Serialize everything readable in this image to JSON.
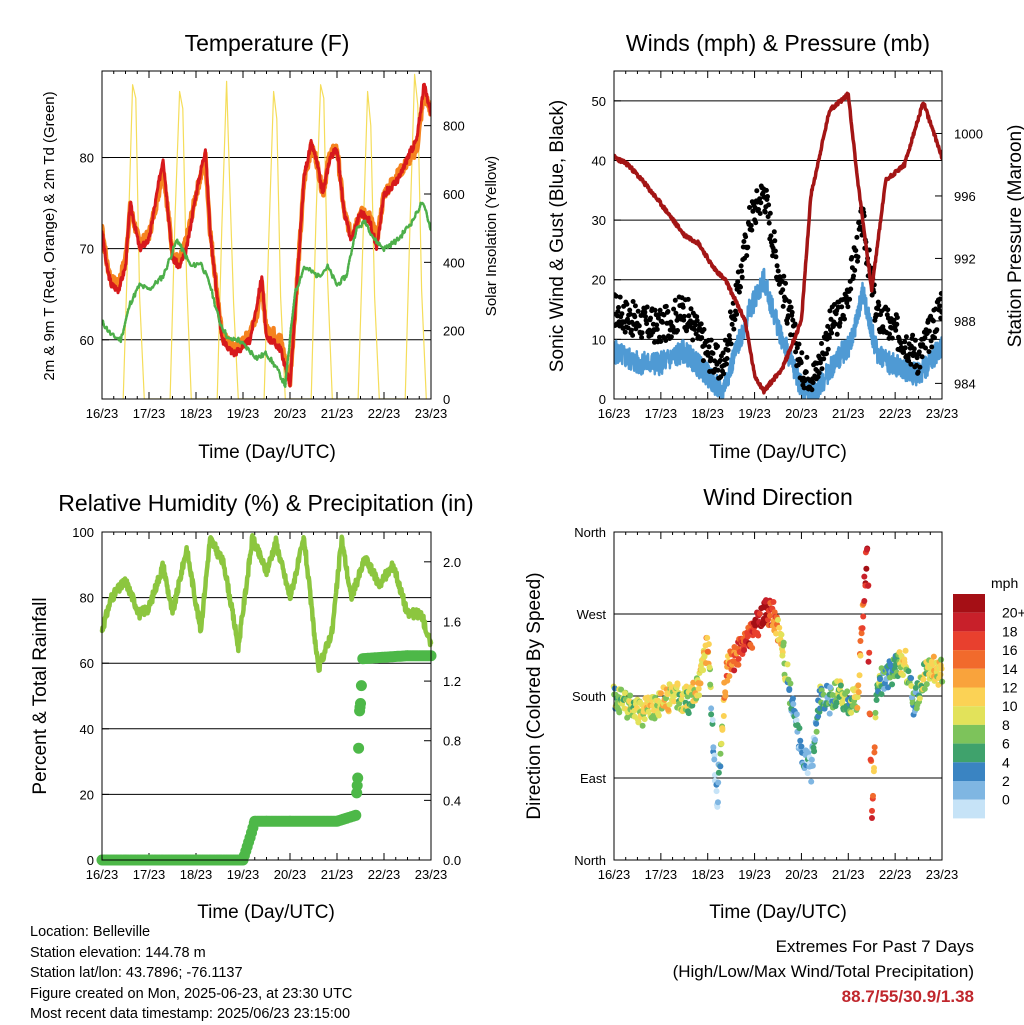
{
  "colors": {
    "t2m": "#d7191c",
    "t9m": "#f5831f",
    "td": "#4daf4a",
    "solar": "#f5dd5a",
    "gust": "#000000",
    "wind": "#4f9ad4",
    "pressure": "#a31515",
    "rh": "#8cc63f",
    "precip": "#4db848",
    "extremes": "#c0272d"
  },
  "x_tick_labels": [
    "16/23",
    "17/23",
    "18/23",
    "19/23",
    "20/23",
    "21/23",
    "22/23",
    "23/23"
  ],
  "charts": [
    {
      "id": "temperature",
      "title": "Temperature (F)",
      "xlabel": "Time (Day/UTC)",
      "ylabel_left": "2m & 9m T (Red, Orange) & 2m Td (Green)",
      "ylabel_right": "Solar Insolation (Yellow)",
      "yticks_left": [
        "60",
        "70",
        "80"
      ],
      "yticks_right": [
        "0",
        "200",
        "400",
        "600",
        "800"
      ]
    },
    {
      "id": "winds",
      "title": "Winds (mph) & Pressure (mb)",
      "xlabel": "Time (Day/UTC)",
      "ylabel_left": "Sonic Wind & Gust (Blue, Black)",
      "ylabel_right": "Station Pressure (Maroon)",
      "yticks_left": [
        "0",
        "10",
        "20",
        "30",
        "40",
        "50"
      ],
      "yticks_right": [
        "984",
        "988",
        "992",
        "996",
        "1000"
      ]
    },
    {
      "id": "humidity",
      "title": "Relative Humidity (%) & Precipitation (in)",
      "xlabel": "Time (Day/UTC)",
      "ylabel_left": "Percent & Total Rainfall",
      "ylabel_right": "",
      "yticks_left": [
        "0",
        "20",
        "40",
        "60",
        "80",
        "100"
      ],
      "yticks_right": [
        "0.0",
        "0.4",
        "0.8",
        "1.2",
        "1.6",
        "2.0"
      ]
    },
    {
      "id": "direction",
      "title": "Wind Direction",
      "xlabel": "Time (Day/UTC)",
      "ylabel_left": "Direction (Colored By Speed)",
      "ylabel_right": "",
      "yticks_left": [
        "North",
        "East",
        "South",
        "West",
        "North"
      ],
      "yticks_right": []
    }
  ],
  "legend": {
    "unit": "mph",
    "labels": [
      "20+",
      "18",
      "16",
      "14",
      "12",
      "10",
      "8",
      "6",
      "4",
      "2",
      "0"
    ],
    "colors": [
      "#a50f15",
      "#c8202a",
      "#e8402e",
      "#f16a2c",
      "#f9a33c",
      "#fbd255",
      "#e2e25a",
      "#7dc35b",
      "#3fa26c",
      "#3a84c2",
      "#7fb6e2",
      "#c6e3f7"
    ]
  },
  "info": {
    "location": "Location: Belleville",
    "elevation": "Station elevation: 144.78 m",
    "latlon": "Station lat/lon: 43.7896; -76.1137",
    "created": "Figure created on Mon, 2025-06-23, at 23:30 UTC",
    "recent": "Most recent data timestamp: 2025/06/23 23:15:00"
  },
  "extremes": {
    "line1": "Extremes For Past 7 Days",
    "line2": "(High/Low/Max Wind/Total Precipitation)",
    "values": "88.7/55/30.9/1.38"
  },
  "chart_data": [
    {
      "type": "line",
      "title": "Temperature (F)",
      "x_unit": "day",
      "ylim": [
        53.5,
        89.5
      ],
      "ylim_right": [
        0,
        960
      ],
      "series": [
        {
          "name": "2m T",
          "axis": "left",
          "x": [
            0,
            0.1,
            0.2,
            0.35,
            0.5,
            0.6,
            0.8,
            1.0,
            1.2,
            1.3,
            1.5,
            1.65,
            1.8,
            2.0,
            2.2,
            2.3,
            2.55,
            2.8,
            2.95,
            3.05,
            3.15,
            3.3,
            3.4,
            3.5,
            3.6,
            3.8,
            4.0,
            4.2,
            4.3,
            4.45,
            4.55,
            4.7,
            4.85,
            5.0,
            5.15,
            5.3,
            5.5,
            5.7,
            5.85,
            6.0,
            6.2,
            6.35,
            6.5,
            6.7,
            6.85,
            7.0
          ],
          "y": [
            72,
            68,
            66,
            65.5,
            68,
            75,
            70,
            71,
            77,
            80,
            69,
            68,
            70,
            76,
            81,
            72,
            60,
            58.5,
            59,
            59.5,
            60,
            64,
            67,
            60,
            60,
            59,
            55,
            70,
            78,
            81.5,
            80,
            76,
            80,
            81,
            74,
            71,
            74,
            73,
            70,
            76,
            77,
            78,
            80,
            82,
            88,
            85
          ]
        },
        {
          "name": "9m T",
          "axis": "left",
          "x": [
            0,
            0.1,
            0.2,
            0.35,
            0.5,
            0.6,
            0.8,
            1.0,
            1.2,
            1.3,
            1.5,
            1.65,
            1.8,
            2.0,
            2.2,
            2.3,
            2.55,
            2.8,
            2.95,
            3.05,
            3.15,
            3.3,
            3.4,
            3.5,
            3.6,
            3.8,
            4.0,
            4.2,
            4.3,
            4.45,
            4.55,
            4.7,
            4.85,
            5.0,
            5.15,
            5.3,
            5.5,
            5.7,
            5.85,
            6.0,
            6.2,
            6.35,
            6.5,
            6.7,
            6.85,
            7.0
          ],
          "y": [
            72.5,
            68.5,
            66.5,
            66,
            69,
            74.5,
            70.5,
            71.5,
            76,
            79,
            69.5,
            68.5,
            71,
            76,
            80,
            72,
            60.5,
            59,
            59.5,
            60,
            61,
            63,
            66,
            61,
            61,
            60,
            55.5,
            70,
            77.5,
            81,
            80,
            76,
            80.5,
            81,
            74,
            71.5,
            74,
            73.5,
            71,
            76,
            77.5,
            78.5,
            79.5,
            81,
            87,
            85
          ]
        },
        {
          "name": "2m Td",
          "axis": "left",
          "x": [
            0,
            0.2,
            0.4,
            0.6,
            0.8,
            1.0,
            1.3,
            1.6,
            1.9,
            2.1,
            2.3,
            2.5,
            2.7,
            2.9,
            3.1,
            3.3,
            3.5,
            3.7,
            3.9,
            4.1,
            4.3,
            4.6,
            4.8,
            5.0,
            5.2,
            5.4,
            5.6,
            5.8,
            6.0,
            6.3,
            6.6,
            6.8,
            6.9,
            7.0
          ],
          "y": [
            62,
            60.5,
            60,
            64,
            66,
            65.5,
            67,
            71,
            68,
            68.5,
            66,
            62,
            60,
            60,
            59,
            58,
            58.5,
            57,
            55,
            65,
            68,
            67,
            68,
            66,
            67,
            72,
            73,
            71,
            70,
            71,
            73,
            75,
            74,
            72
          ]
        },
        {
          "name": "Solar",
          "axis": "right",
          "x": [
            0.45,
            0.55,
            0.65,
            0.72,
            0.8,
            0.9,
            1.45,
            1.55,
            1.65,
            1.72,
            1.8,
            1.9,
            2.45,
            2.55,
            2.65,
            2.72,
            2.8,
            2.9,
            3.45,
            3.55,
            3.65,
            3.72,
            3.8,
            3.9,
            4.45,
            4.55,
            4.65,
            4.72,
            4.8,
            4.9,
            5.45,
            5.55,
            5.65,
            5.72,
            5.8,
            5.9,
            6.45,
            6.55,
            6.65,
            6.72,
            6.8,
            6.9
          ],
          "y": [
            0,
            450,
            920,
            880,
            300,
            0,
            0,
            520,
            900,
            850,
            350,
            0,
            0,
            500,
            930,
            620,
            280,
            0,
            0,
            480,
            900,
            820,
            300,
            0,
            0,
            520,
            920,
            880,
            350,
            0,
            0,
            450,
            900,
            800,
            300,
            0,
            0,
            500,
            950,
            860,
            320,
            0
          ]
        }
      ]
    },
    {
      "type": "line",
      "title": "Winds (mph) & Pressure (mb)",
      "x_unit": "day",
      "ylim": [
        0,
        55
      ],
      "ylim_right": [
        983,
        1004
      ],
      "series": [
        {
          "name": "Gust",
          "axis": "left",
          "type": "scatter",
          "x": [
            0,
            0.5,
            1.0,
            1.5,
            2.0,
            2.3,
            2.6,
            2.9,
            3.2,
            3.5,
            3.8,
            4.0,
            4.3,
            4.6,
            4.9,
            5.1,
            5.3,
            5.6,
            5.9,
            6.2,
            6.5,
            6.8,
            7.0
          ],
          "y": [
            15,
            13,
            12,
            15,
            8,
            5,
            16,
            30,
            35,
            22,
            12,
            5,
            4,
            12,
            15,
            22,
            30,
            14,
            12,
            10,
            7,
            12,
            17
          ]
        },
        {
          "name": "Wind",
          "axis": "left",
          "x": [
            0,
            0.5,
            1.0,
            1.5,
            2.0,
            2.3,
            2.6,
            2.9,
            3.2,
            3.5,
            3.8,
            4.0,
            4.3,
            4.6,
            4.9,
            5.1,
            5.3,
            5.6,
            5.9,
            6.2,
            6.5,
            6.8,
            7.0
          ],
          "y": [
            8,
            6,
            6,
            8,
            4,
            1,
            8,
            15,
            20,
            12,
            6,
            2,
            1,
            5,
            8,
            10,
            18,
            8,
            6,
            5,
            4,
            7,
            9
          ]
        },
        {
          "name": "Pressure",
          "axis": "right",
          "x": [
            0,
            0.3,
            0.6,
            1.0,
            1.5,
            1.8,
            2.1,
            2.4,
            2.8,
            3.0,
            3.2,
            3.6,
            4.0,
            4.2,
            4.6,
            5.0,
            5.2,
            5.5,
            5.8,
            6.2,
            6.6,
            7.0
          ],
          "y": [
            998.5,
            998,
            997,
            995.5,
            993.5,
            993,
            991.5,
            990.5,
            988,
            984.5,
            983.5,
            985,
            988,
            996,
            1001.5,
            1002.5,
            997,
            990,
            997,
            998,
            1002,
            998.5
          ]
        }
      ]
    },
    {
      "type": "line",
      "title": "Relative Humidity (%) & Precipitation (in)",
      "x_unit": "day",
      "ylim": [
        0,
        100
      ],
      "ylim_right": [
        0,
        2.2
      ],
      "series": [
        {
          "name": "RH",
          "axis": "left",
          "x": [
            0,
            0.2,
            0.5,
            0.8,
            1.0,
            1.3,
            1.5,
            1.8,
            2.1,
            2.3,
            2.6,
            2.9,
            3.2,
            3.5,
            3.7,
            4.0,
            4.3,
            4.6,
            4.9,
            5.1,
            5.3,
            5.6,
            5.9,
            6.2,
            6.5,
            6.8,
            7.0
          ],
          "y": [
            70,
            80,
            85,
            75,
            77,
            90,
            75,
            95,
            70,
            98,
            90,
            65,
            98,
            88,
            97,
            80,
            98,
            58,
            70,
            98,
            80,
            92,
            84,
            90,
            75,
            75,
            65
          ]
        },
        {
          "name": "Precip",
          "axis": "right",
          "type": "scatter",
          "x": [
            0,
            0.5,
            1.0,
            1.5,
            2.0,
            2.5,
            3.0,
            3.15,
            3.25,
            3.5,
            4.0,
            4.5,
            5.0,
            5.2,
            5.4,
            5.42,
            5.44,
            5.46,
            5.48,
            5.5,
            5.55,
            6.0,
            6.5,
            7.0
          ],
          "y": [
            0,
            0,
            0,
            0,
            0,
            0,
            0,
            0.15,
            0.26,
            0.26,
            0.26,
            0.26,
            0.26,
            0.28,
            0.3,
            0.45,
            0.55,
            0.75,
            1.0,
            1.05,
            1.35,
            1.36,
            1.37,
            1.37
          ]
        }
      ]
    },
    {
      "type": "scatter",
      "title": "Wind Direction",
      "x_unit": "day",
      "ylim": [
        0,
        360
      ],
      "y_unit": "degrees",
      "series": [
        {
          "name": "Direction",
          "x": [
            0,
            0.3,
            0.6,
            1.0,
            1.3,
            1.6,
            1.8,
            2.0,
            2.1,
            2.2,
            2.4,
            2.7,
            3.0,
            3.2,
            3.4,
            3.6,
            3.8,
            4.0,
            4.2,
            4.4,
            4.6,
            4.8,
            5.0,
            5.2,
            5.4,
            5.5,
            5.6,
            5.8,
            6.0,
            6.2,
            6.4,
            6.6,
            6.8,
            7.0
          ],
          "y": [
            180,
            170,
            160,
            175,
            180,
            175,
            190,
            240,
            150,
            60,
            210,
            230,
            250,
            275,
            270,
            230,
            170,
            120,
            100,
            180,
            175,
            185,
            170,
            180,
            350,
            40,
            190,
            200,
            210,
            220,
            170,
            200,
            210,
            205
          ],
          "speed": [
            6,
            8,
            9,
            10,
            9,
            8,
            10,
            12,
            3,
            1,
            14,
            16,
            18,
            20,
            15,
            10,
            4,
            2,
            2,
            6,
            4,
            8,
            6,
            10,
            20,
            16,
            8,
            4,
            6,
            10,
            4,
            8,
            10,
            10
          ]
        }
      ]
    }
  ]
}
